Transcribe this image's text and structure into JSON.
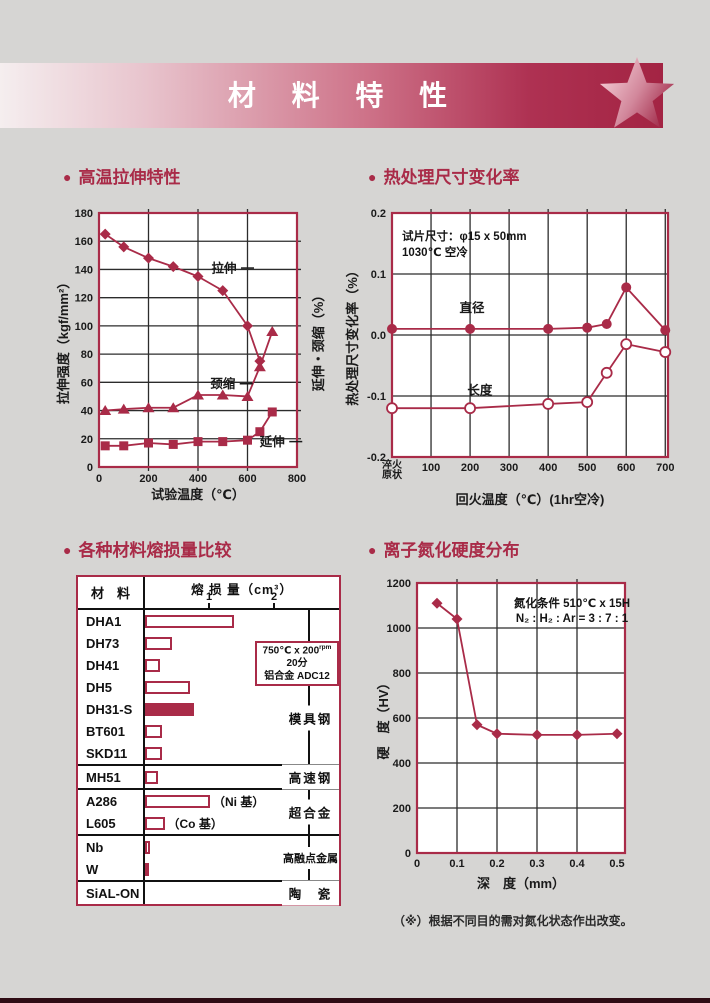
{
  "page": {
    "header_title": "材 料 特 性",
    "footnote": "（※）根据不同目的需对氮化状态作出改变。"
  },
  "colors": {
    "accent": "#a92b48",
    "banner_dark": "#a32443",
    "grid": "#2c2c2c",
    "page_bg": "#d6d5d3",
    "bottom_bar": "#2f0c14"
  },
  "sections": {
    "s1": "高温拉伸特性",
    "s2": "热处理尺寸变化率",
    "s3": "各种材料熔损量比较",
    "s4": "离子氮化硬度分布"
  },
  "chart_data": [
    {
      "type": "line",
      "title": "高温拉伸特性",
      "xlabel": "试验温度（℃）",
      "ylabel": "拉伸强度（kgf/mm²）",
      "ylabel_right": "延伸・颈缩（%）",
      "xlim": [
        0,
        800
      ],
      "ylim": [
        0,
        180
      ],
      "xticks": [
        {
          "v": 0,
          "label": "0"
        },
        {
          "v": 200,
          "label": "200"
        },
        {
          "v": 400,
          "label": "400"
        },
        {
          "v": 600,
          "label": "600"
        },
        {
          "v": 800,
          "label": "800"
        }
      ],
      "yticks": [
        {
          "v": 0,
          "label": "0"
        },
        {
          "v": 20,
          "label": "20"
        },
        {
          "v": 40,
          "label": "40"
        },
        {
          "v": 60,
          "label": "60"
        },
        {
          "v": 80,
          "label": "80"
        },
        {
          "v": 100,
          "label": "100"
        },
        {
          "v": 120,
          "label": "120"
        },
        {
          "v": 140,
          "label": "140"
        },
        {
          "v": 160,
          "label": "160"
        },
        {
          "v": 180,
          "label": "180"
        }
      ],
      "xgrid": [
        200,
        400,
        600
      ],
      "ygrid": [
        20,
        40,
        60,
        80,
        100,
        120,
        140,
        160
      ],
      "series": [
        {
          "name": "拉伸",
          "marker": "diamond",
          "points": [
            [
              25,
              165
            ],
            [
              100,
              156
            ],
            [
              200,
              148
            ],
            [
              300,
              142
            ],
            [
              400,
              135
            ],
            [
              500,
              125
            ],
            [
              600,
              100
            ],
            [
              650,
              75
            ]
          ]
        },
        {
          "name": "颈缩",
          "marker": "triangle",
          "points": [
            [
              25,
              40
            ],
            [
              100,
              41
            ],
            [
              200,
              42
            ],
            [
              300,
              42
            ],
            [
              400,
              51
            ],
            [
              500,
              51
            ],
            [
              600,
              50
            ],
            [
              650,
              71
            ],
            [
              700,
              96
            ]
          ]
        },
        {
          "name": "延伸",
          "marker": "square",
          "points": [
            [
              25,
              15
            ],
            [
              100,
              15
            ],
            [
              200,
              17
            ],
            [
              300,
              16
            ],
            [
              400,
              18
            ],
            [
              500,
              18
            ],
            [
              600,
              19
            ],
            [
              650,
              25
            ],
            [
              700,
              39
            ]
          ]
        }
      ],
      "labels": [
        {
          "text": "拉伸",
          "x": 505,
          "y": 141,
          "dash": "right"
        },
        {
          "text": "颈缩",
          "x": 500,
          "y": 59,
          "dash": "right"
        },
        {
          "text": "延伸",
          "x": 700,
          "y": 18,
          "dash": "right"
        }
      ]
    },
    {
      "type": "line",
      "title": "热处理尺寸变化率",
      "xlabel": "回火温度（℃）(1hr空冷)",
      "ylabel": "热处理尺寸变化率（%）",
      "xlim": [
        0,
        707
      ],
      "ylim": [
        -0.2,
        0.2
      ],
      "xticks": [
        {
          "v": 0,
          "label": "淬火\n原状"
        },
        {
          "v": 100,
          "label": "100"
        },
        {
          "v": 200,
          "label": "200"
        },
        {
          "v": 300,
          "label": "300"
        },
        {
          "v": 400,
          "label": "400"
        },
        {
          "v": 500,
          "label": "500"
        },
        {
          "v": 600,
          "label": "600"
        },
        {
          "v": 700,
          "label": "700"
        }
      ],
      "yticks": [
        {
          "v": 0.2,
          "label": "0.2"
        },
        {
          "v": 0.1,
          "label": "0.1"
        },
        {
          "v": 0,
          "label": "0.0"
        },
        {
          "v": -0.1,
          "label": "-0.1"
        },
        {
          "v": -0.2,
          "label": "-0.2"
        }
      ],
      "xgrid": [
        100,
        200,
        300,
        400,
        500,
        600,
        700
      ],
      "ygrid": [
        0.1,
        0,
        -0.1
      ],
      "series": [
        {
          "name": "直径",
          "marker": "circle",
          "points": [
            [
              0,
              0.01
            ],
            [
              200,
              0.01
            ],
            [
              400,
              0.01
            ],
            [
              500,
              0.012
            ],
            [
              550,
              0.018
            ],
            [
              600,
              0.078
            ],
            [
              700,
              0.008
            ]
          ]
        },
        {
          "name": "长度",
          "marker": "circle-open",
          "points": [
            [
              0,
              -0.12
            ],
            [
              200,
              -0.12
            ],
            [
              400,
              -0.113
            ],
            [
              500,
              -0.11
            ],
            [
              550,
              -0.062
            ],
            [
              600,
              -0.015
            ],
            [
              700,
              -0.028
            ]
          ]
        }
      ],
      "labels": [
        {
          "text": "直径",
          "x": 205,
          "y": 0.045
        },
        {
          "text": "长度",
          "x": 225,
          "y": -0.09
        }
      ],
      "annotation": [
        "试片尺寸：φ15 x 50mm",
        "1030℃ 空冷"
      ]
    },
    {
      "type": "bar",
      "title": "各种材料熔损量比较",
      "col_material": "材　料",
      "col_value": "熔 损 量（cm³）",
      "ticks": [
        "1",
        "2"
      ],
      "unit_cm3": 1,
      "groups": [
        {
          "label": "模具钢",
          "rows": [
            {
              "name": "DHA1",
              "value": 1.37
            },
            {
              "name": "DH73",
              "value": 0.42
            },
            {
              "name": "DH41",
              "value": 0.23
            },
            {
              "name": "DH5",
              "value": 0.69
            },
            {
              "name": "DH31-S",
              "value": 0.75,
              "filled": true
            },
            {
              "name": "BT601",
              "value": 0.26
            },
            {
              "name": "SKD11",
              "value": 0.26
            }
          ]
        },
        {
          "label": "高速钢",
          "rows": [
            {
              "name": "MH51",
              "value": 0.2
            }
          ]
        },
        {
          "label": "超合金",
          "rows": [
            {
              "name": "A286",
              "value": 1.0,
              "suffix": "（Ni 基）"
            },
            {
              "name": "L605",
              "value": 0.3,
              "suffix": "（Co 基）"
            }
          ]
        },
        {
          "label": "高融点金属",
          "rows": [
            {
              "name": "Nb",
              "value": 0.08
            },
            {
              "name": "W",
              "value": 0.06
            }
          ]
        },
        {
          "label": "陶　瓷",
          "rows": [
            {
              "name": "SiAL-ON",
              "value": 0
            }
          ]
        }
      ],
      "annotation": {
        "line1": "750℃ x 200",
        "line1_sup": "rpm",
        "line2": "20分",
        "line3": "铝合金 ADC12"
      }
    },
    {
      "type": "line",
      "title": "离子氮化硬度分布",
      "xlabel": "深　度（mm）",
      "ylabel": "硬　度（HV）",
      "xlim": [
        0,
        0.52
      ],
      "ylim": [
        0,
        1200
      ],
      "xticks": [
        {
          "v": 0,
          "label": "0"
        },
        {
          "v": 0.1,
          "label": "0.1"
        },
        {
          "v": 0.2,
          "label": "0.2"
        },
        {
          "v": 0.3,
          "label": "0.3"
        },
        {
          "v": 0.4,
          "label": "0.4"
        },
        {
          "v": 0.5,
          "label": "0.5"
        }
      ],
      "yticks": [
        {
          "v": 0,
          "label": "0"
        },
        {
          "v": 200,
          "label": "200"
        },
        {
          "v": 400,
          "label": "400"
        },
        {
          "v": 600,
          "label": "600"
        },
        {
          "v": 800,
          "label": "800"
        },
        {
          "v": 1000,
          "label": "1000"
        },
        {
          "v": 1200,
          "label": "1200"
        }
      ],
      "xgrid": [
        0.1,
        0.2,
        0.3,
        0.4
      ],
      "ygrid": [
        200,
        400,
        600,
        800,
        1000
      ],
      "series": [
        {
          "name": "硬度",
          "marker": "diamond",
          "points": [
            [
              0.05,
              1110
            ],
            [
              0.1,
              1040
            ],
            [
              0.15,
              570
            ],
            [
              0.2,
              530
            ],
            [
              0.3,
              525
            ],
            [
              0.4,
              525
            ],
            [
              0.5,
              530
            ]
          ]
        }
      ],
      "labels": [],
      "annotation": [
        "氮化条件 510℃ x 15H",
        "N₂ : H₂ : Ar = 3 : 7 : 1"
      ]
    }
  ]
}
